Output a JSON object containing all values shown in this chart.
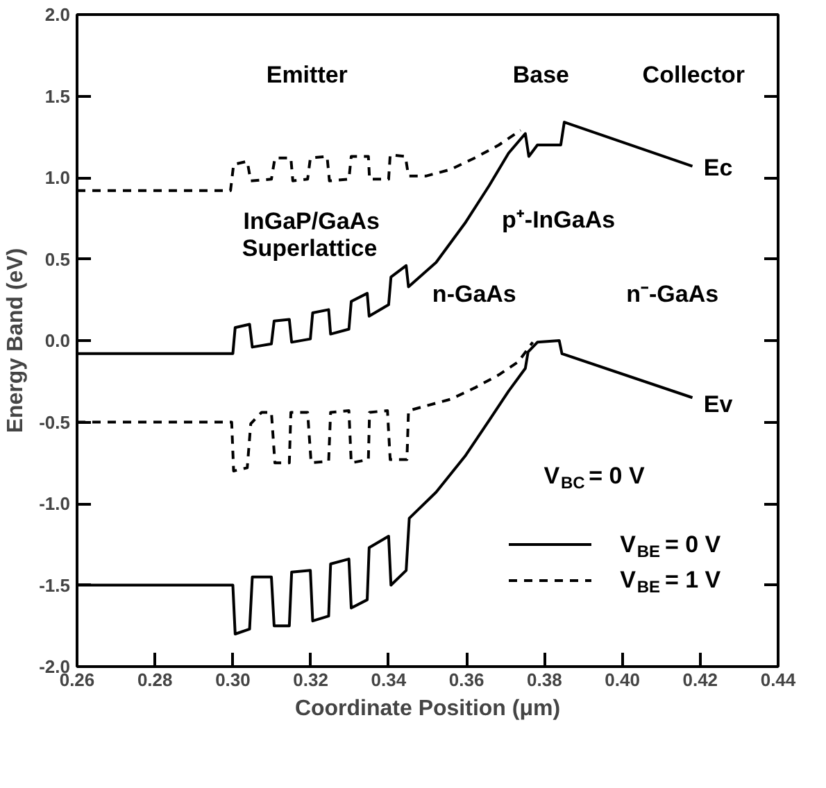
{
  "chart_data": {
    "type": "line",
    "xlabel": "Coordinate Position (μm)",
    "ylabel": "Energy Band (eV)",
    "xlim": [
      0.26,
      0.44
    ],
    "ylim": [
      -2.0,
      2.0
    ],
    "xticks": [
      {
        "value": 0.26,
        "label": "0.26"
      },
      {
        "value": 0.28,
        "label": "0.28"
      },
      {
        "value": 0.3,
        "label": "0.30"
      },
      {
        "value": 0.32,
        "label": "0.32"
      },
      {
        "value": 0.34,
        "label": "0.34"
      },
      {
        "value": 0.36,
        "label": "0.36"
      },
      {
        "value": 0.38,
        "label": "0.38"
      },
      {
        "value": 0.4,
        "label": "0.40"
      },
      {
        "value": 0.42,
        "label": "0.42"
      },
      {
        "value": 0.44,
        "label": "0.44"
      }
    ],
    "yticks": [
      {
        "value": -2.0,
        "label": "-2.0"
      },
      {
        "value": -1.5,
        "label": "-1.5"
      },
      {
        "value": -1.0,
        "label": "-1.0"
      },
      {
        "value": -0.5,
        "label": "-0.5"
      },
      {
        "value": 0.0,
        "label": "0.0"
      },
      {
        "value": 0.5,
        "label": "0.5"
      },
      {
        "value": 1.0,
        "label": "1.0"
      },
      {
        "value": 1.5,
        "label": "1.5"
      },
      {
        "value": 2.0,
        "label": "2.0"
      }
    ],
    "grid": false,
    "legend": "bottom right",
    "marker": "none",
    "series": [
      {
        "name": "V$_{BE}$ = 0 V",
        "color": "#000000",
        "line_style": "solid",
        "x": [
          0.26,
          0.3,
          0.3006,
          0.3043,
          0.305,
          0.3099,
          0.3106,
          0.3145,
          0.3151,
          0.3199,
          0.3205,
          0.3246,
          0.3251,
          0.3298,
          0.3304,
          0.3345,
          0.335,
          0.34,
          0.3406,
          0.3445,
          0.3451,
          0.3522,
          0.3596,
          0.3658,
          0.3708,
          0.3751,
          0.376,
          0.3782,
          0.3842,
          0.3851,
          0.418
        ],
        "values": [
          -0.08,
          -0.08,
          0.08,
          0.1,
          -0.04,
          -0.02,
          0.12,
          0.13,
          -0.01,
          0.01,
          0.17,
          0.19,
          0.04,
          0.07,
          0.24,
          0.29,
          0.15,
          0.22,
          0.39,
          0.46,
          0.33,
          0.48,
          0.72,
          0.95,
          1.15,
          1.27,
          1.13,
          1.2,
          1.2,
          1.34,
          1.07
        ]
      },
      {
        "color": "#000000",
        "line_style": "solid",
        "x": [
          0.26,
          0.3,
          0.3006,
          0.3043,
          0.305,
          0.3099,
          0.3106,
          0.3145,
          0.3151,
          0.3199,
          0.3205,
          0.3246,
          0.3251,
          0.3298,
          0.3304,
          0.3345,
          0.335,
          0.34,
          0.3406,
          0.3445,
          0.3453,
          0.3522,
          0.3596,
          0.3658,
          0.3708,
          0.3751,
          0.3758,
          0.3782,
          0.3838,
          0.3845,
          0.418
        ],
        "values": [
          -1.5,
          -1.5,
          -1.8,
          -1.77,
          -1.45,
          -1.45,
          -1.75,
          -1.75,
          -1.42,
          -1.41,
          -1.72,
          -1.69,
          -1.37,
          -1.34,
          -1.64,
          -1.59,
          -1.27,
          -1.2,
          -1.5,
          -1.41,
          -1.09,
          -0.93,
          -0.71,
          -0.49,
          -0.31,
          -0.17,
          -0.07,
          -0.01,
          0.0,
          -0.08,
          -0.35
        ]
      },
      {
        "name": "V$_{BE}$ = 1 V",
        "color": "#000000",
        "line_style": "dashed",
        "x": [
          0.26,
          0.2994,
          0.3002,
          0.3037,
          0.3046,
          0.3099,
          0.3108,
          0.3149,
          0.3154,
          0.3192,
          0.3199,
          0.3242,
          0.3248,
          0.3298,
          0.3304,
          0.3348,
          0.3351,
          0.34,
          0.3404,
          0.3443,
          0.3451,
          0.3497,
          0.3559,
          0.3621,
          0.3683,
          0.3739
        ],
        "values": [
          0.92,
          0.92,
          1.08,
          1.1,
          0.98,
          0.99,
          1.12,
          1.12,
          0.98,
          0.99,
          1.12,
          1.13,
          0.98,
          0.99,
          1.13,
          1.13,
          0.99,
          0.99,
          1.14,
          1.13,
          1.01,
          1.01,
          1.05,
          1.12,
          1.2,
          1.29
        ]
      },
      {
        "color": "#000000",
        "line_style": "dashed",
        "x": [
          0.26,
          0.2997,
          0.3002,
          0.3037,
          0.3046,
          0.3074,
          0.3099,
          0.3108,
          0.3145,
          0.3149,
          0.3192,
          0.3201,
          0.3246,
          0.3251,
          0.3298,
          0.3304,
          0.3348,
          0.3351,
          0.3397,
          0.3404,
          0.3447,
          0.3451,
          0.3497,
          0.3559,
          0.3621,
          0.3683,
          0.3733,
          0.377
        ],
        "values": [
          -0.5,
          -0.5,
          -0.8,
          -0.78,
          -0.51,
          -0.44,
          -0.44,
          -0.75,
          -0.75,
          -0.44,
          -0.44,
          -0.75,
          -0.74,
          -0.44,
          -0.43,
          -0.75,
          -0.73,
          -0.44,
          -0.43,
          -0.73,
          -0.73,
          -0.43,
          -0.4,
          -0.36,
          -0.29,
          -0.21,
          -0.13,
          -0.01
        ]
      }
    ],
    "annotations": [
      "Emitter",
      "Base",
      "Collector",
      "Ec",
      "Ev",
      "InGaP/GaAs\nSuperlattice",
      "p⁺-InGaAs",
      "n-GaAs",
      "n⁻-GaAs",
      "V$_{BC}$ = 0 V"
    ]
  }
}
